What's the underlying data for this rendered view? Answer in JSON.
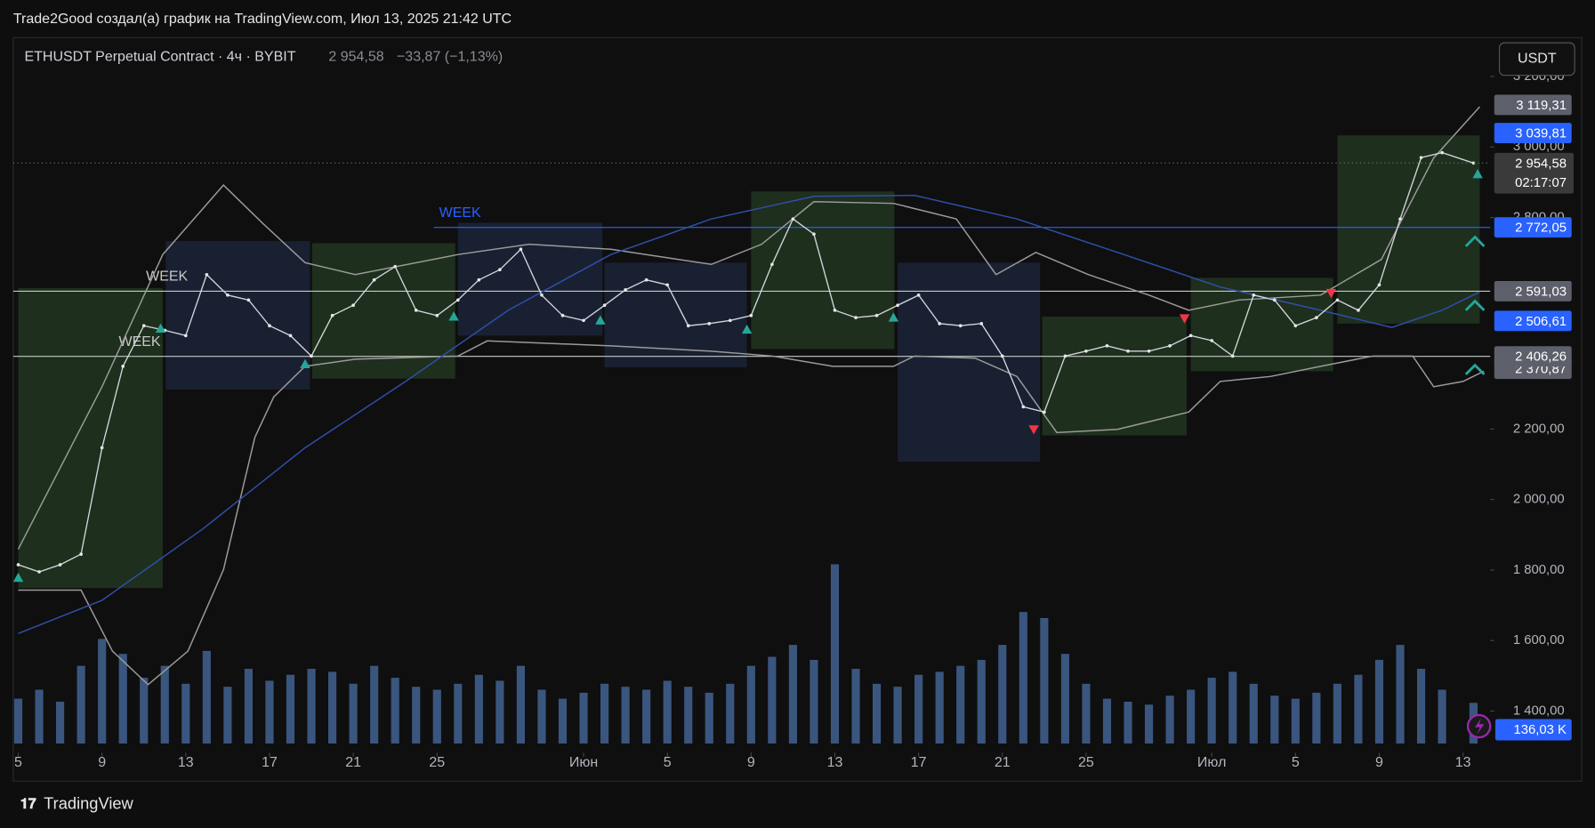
{
  "chart_data": {
    "type": "line",
    "header": "Trade2Good создал(а) график на TradingView.com, Июл 13, 2025 21:42 UTC",
    "title": "ETHUSDT Perpetual Contract · 4ч · BYBIT",
    "last_label": "2 954,58",
    "change": "−33,87 (−1,13%)",
    "countdown": "02:17:07",
    "currency": "USDT",
    "brand": "TradingView",
    "color": "#d1d4dc",
    "xlim": [
      -0.24,
      70.3
    ],
    "ylim": [
      1282,
      3310
    ],
    "grid": false,
    "yticks": [
      {
        "value": 1400,
        "label": "1 400,00"
      },
      {
        "value": 1600,
        "label": "1 600,00"
      },
      {
        "value": 1800,
        "label": "1 800,00"
      },
      {
        "value": 2000,
        "label": "2 000,00"
      },
      {
        "value": 2200,
        "label": "2 200,00"
      },
      {
        "value": 2800,
        "label": "2 800,00"
      },
      {
        "value": 3000,
        "label": "3 000,00"
      },
      {
        "value": 3200,
        "label": "3 200,00"
      }
    ],
    "xticks": [
      {
        "value": 0,
        "label": "5"
      },
      {
        "value": 4,
        "label": "9"
      },
      {
        "value": 8,
        "label": "13"
      },
      {
        "value": 12,
        "label": "17"
      },
      {
        "value": 16,
        "label": "21"
      },
      {
        "value": 20,
        "label": "25"
      },
      {
        "value": 27,
        "label": "Июн"
      },
      {
        "value": 31,
        "label": "5"
      },
      {
        "value": 35,
        "label": "9"
      },
      {
        "value": 39,
        "label": "13"
      },
      {
        "value": 43,
        "label": "17"
      },
      {
        "value": 47,
        "label": "21"
      },
      {
        "value": 51,
        "label": "25"
      },
      {
        "value": 57,
        "label": "Июл"
      },
      {
        "value": 61,
        "label": "5"
      },
      {
        "value": 65,
        "label": "9"
      },
      {
        "value": 69,
        "label": "13"
      }
    ],
    "x": [
      0,
      1,
      2,
      3,
      4,
      5,
      6,
      7,
      8,
      9,
      10,
      11,
      12,
      13,
      14,
      15,
      16,
      17,
      18,
      19,
      20,
      21,
      22,
      23,
      24,
      25,
      26,
      27,
      28,
      29,
      30,
      31,
      32,
      33,
      34,
      35,
      36,
      37,
      38,
      39,
      40,
      41,
      42,
      43,
      44,
      45,
      46,
      47,
      48,
      49,
      50,
      51,
      52,
      53,
      54,
      55,
      56,
      57,
      58,
      59,
      60,
      61,
      62,
      63,
      64,
      65,
      66,
      67,
      68,
      69.5
    ],
    "values": [
      1815,
      1795,
      1815,
      1845,
      2147,
      2378,
      2493,
      2480,
      2465,
      2638,
      2580,
      2566,
      2493,
      2465,
      2407,
      2522,
      2551,
      2623,
      2661,
      2537,
      2522,
      2566,
      2623,
      2652,
      2710,
      2580,
      2522,
      2508,
      2551,
      2595,
      2623,
      2609,
      2493,
      2499,
      2508,
      2522,
      2667,
      2796,
      2753,
      2537,
      2516,
      2522,
      2551,
      2580,
      2499,
      2493,
      2499,
      2407,
      2263,
      2248,
      2407,
      2421,
      2436,
      2421,
      2421,
      2436,
      2465,
      2451,
      2407,
      2580,
      2566,
      2493,
      2516,
      2566,
      2537,
      2609,
      2796,
      2970,
      2984,
      2954.58
    ],
    "volume": {
      "color": "#4a6fa5",
      "ylim": [
        0,
        800
      ],
      "values": [
        150,
        180,
        140,
        260,
        350,
        300,
        220,
        260,
        200,
        310,
        190,
        250,
        210,
        230,
        250,
        240,
        200,
        260,
        220,
        190,
        180,
        200,
        230,
        210,
        260,
        180,
        150,
        170,
        200,
        190,
        180,
        210,
        190,
        170,
        200,
        260,
        290,
        330,
        280,
        600,
        250,
        200,
        190,
        230,
        240,
        260,
        280,
        330,
        440,
        420,
        300,
        200,
        150,
        140,
        130,
        160,
        180,
        220,
        240,
        200,
        160,
        150,
        170,
        200,
        230,
        280,
        330,
        250,
        180,
        136.03
      ],
      "value_label": "136,03 K"
    },
    "indicators": [
      {
        "color": "#9a9a9a",
        "x": [
          0,
          4,
          6.9,
          9.8,
          11.7,
          13.7,
          16.1,
          21,
          24.4,
          28.3,
          33.1,
          35.5,
          38,
          41.8,
          44.8,
          46.7,
          48.6,
          51.1,
          54,
          55.9,
          58.3,
          62.2,
          65.1,
          67.6,
          69.8
        ],
        "values": [
          1859,
          2320,
          2695,
          2892,
          2782,
          2672,
          2638,
          2695,
          2724,
          2710,
          2667,
          2724,
          2845,
          2840,
          2796,
          2638,
          2701,
          2638,
          2580,
          2537,
          2566,
          2580,
          2681,
          2969,
          3114
        ]
      },
      {
        "color": "#9a9a9a",
        "x": [
          0,
          3,
          4.5,
          6.2,
          8.1,
          9.8,
          11.3,
          12.2,
          13.7,
          16.1,
          21,
          22.4,
          28.3,
          33.1,
          36,
          38.9,
          41.8,
          42.8,
          45.7,
          47.7,
          49.6,
          52.5,
          55.9,
          57.4,
          59.8,
          62.2,
          64.7,
          66.6,
          67.6,
          69,
          70
        ],
        "values": [
          1743,
          1743,
          1570,
          1475,
          1570,
          1801,
          2176,
          2291,
          2378,
          2398,
          2407,
          2450,
          2436,
          2421,
          2407,
          2378,
          2378,
          2407,
          2401,
          2349,
          2190,
          2199,
          2248,
          2335,
          2349,
          2378,
          2407,
          2407,
          2320,
          2335,
          2364
        ]
      },
      {
        "color": "#2f4fa8",
        "x": [
          0,
          4,
          8.8,
          13.7,
          18.5,
          23.4,
          28.3,
          33.1,
          38,
          42.8,
          47.7,
          52.5,
          57.4,
          62.2,
          65.6,
          68,
          69.8
        ],
        "values": [
          1620,
          1714,
          1916,
          2147,
          2335,
          2537,
          2695,
          2796,
          2860,
          2863,
          2796,
          2701,
          2603,
          2537,
          2488,
          2537,
          2589
        ]
      }
    ],
    "zones": [
      {
        "from": 0,
        "to": 6.9,
        "low": 1749,
        "high": 2600,
        "color": "#2c4a2a"
      },
      {
        "from": 7.04,
        "to": 13.93,
        "low": 2312,
        "high": 2733,
        "color": "#22304f"
      },
      {
        "from": 14.03,
        "to": 20.87,
        "low": 2343,
        "high": 2727,
        "color": "#2c4a2a"
      },
      {
        "from": 21.0,
        "to": 27.9,
        "low": 2465,
        "high": 2785,
        "color": "#22304f"
      },
      {
        "from": 28.0,
        "to": 34.8,
        "low": 2375,
        "high": 2672,
        "color": "#22304f"
      },
      {
        "from": 35.0,
        "to": 41.84,
        "low": 2427,
        "high": 2874,
        "color": "#2c4a2a"
      },
      {
        "from": 42.0,
        "to": 48.8,
        "low": 2107,
        "high": 2672,
        "color": "#22304f"
      },
      {
        "from": 48.9,
        "to": 55.8,
        "low": 2182,
        "high": 2519,
        "color": "#2c4a2a"
      },
      {
        "from": 56.0,
        "to": 62.8,
        "low": 2364,
        "high": 2629,
        "color": "#2c4a2a"
      },
      {
        "from": 63.0,
        "to": 69.8,
        "low": 2499,
        "high": 3033,
        "color": "#2c4a2a"
      }
    ],
    "signals": [
      {
        "x": 0,
        "price": 1781,
        "color": "#26a69a"
      },
      {
        "x": 6.8,
        "price": 2488,
        "color": "#26a69a"
      },
      {
        "x": 13.7,
        "price": 2387,
        "color": "#26a69a"
      },
      {
        "x": 20.8,
        "price": 2522,
        "color": "#26a69a"
      },
      {
        "x": 27.8,
        "price": 2511,
        "color": "#26a69a"
      },
      {
        "x": 34.8,
        "price": 2485,
        "color": "#26a69a"
      },
      {
        "x": 41.8,
        "price": 2519,
        "color": "#26a69a"
      },
      {
        "x": 69.7,
        "price": 2926,
        "color": "#26a69a"
      },
      {
        "x": 48.5,
        "price": 2196,
        "color": "#f23645"
      },
      {
        "x": 55.7,
        "price": 2511,
        "color": "#f23645"
      },
      {
        "x": 62.7,
        "price": 2583,
        "color": "#f23645"
      }
    ],
    "levels": [
      {
        "label": "WEEK",
        "value": 2772.05,
        "value_label": "2 772,05",
        "color": "#2962ff",
        "from": 19.85,
        "label_x": 20.1
      },
      {
        "label": "WEEK",
        "value": 2591.03,
        "value_label": "2 591,03",
        "color": "#c8c8c8",
        "from": -0.24,
        "label_x": 6.1
      },
      {
        "label": "WEEK",
        "value": 2406.26,
        "value_label": "2 406,26",
        "color": "#c8c8c8",
        "from": -0.24,
        "label_x": 4.8
      }
    ],
    "axis_labels": [
      {
        "value": 3119.31,
        "label": "3 119,31",
        "color": "#5d606b"
      },
      {
        "value": 3039.81,
        "label": "3 039,81",
        "color": "#2962ff"
      },
      {
        "value": 2506.61,
        "label": "2 506,61",
        "color": "#2962ff"
      },
      {
        "value": 2370.87,
        "label": "2 370,87",
        "color": "#5d606b"
      }
    ]
  }
}
